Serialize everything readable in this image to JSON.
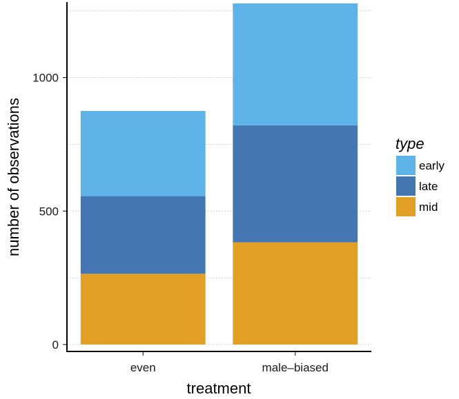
{
  "chart_data": {
    "type": "bar",
    "stacked": true,
    "title": "",
    "xlabel": "treatment",
    "ylabel": "number of observations",
    "categories": [
      "even",
      "male–biased"
    ],
    "ylim": [
      -26,
      1283
    ],
    "yticks": [
      0,
      500,
      1000
    ],
    "yticks_text": [
      "0",
      "500",
      "1000"
    ],
    "minor_gridlines": [
      250,
      750,
      1250
    ],
    "legend": {
      "title": "type",
      "position": "right"
    },
    "series": [
      {
        "name": "mid",
        "values": [
          265,
          383
        ],
        "color": "#E29F26"
      },
      {
        "name": "late",
        "values": [
          291,
          438
        ],
        "color": "#4476B1"
      },
      {
        "name": "early",
        "values": [
          319,
          457
        ],
        "color": "#5DB3E8"
      }
    ],
    "legend_order": [
      "early",
      "late",
      "mid"
    ]
  }
}
